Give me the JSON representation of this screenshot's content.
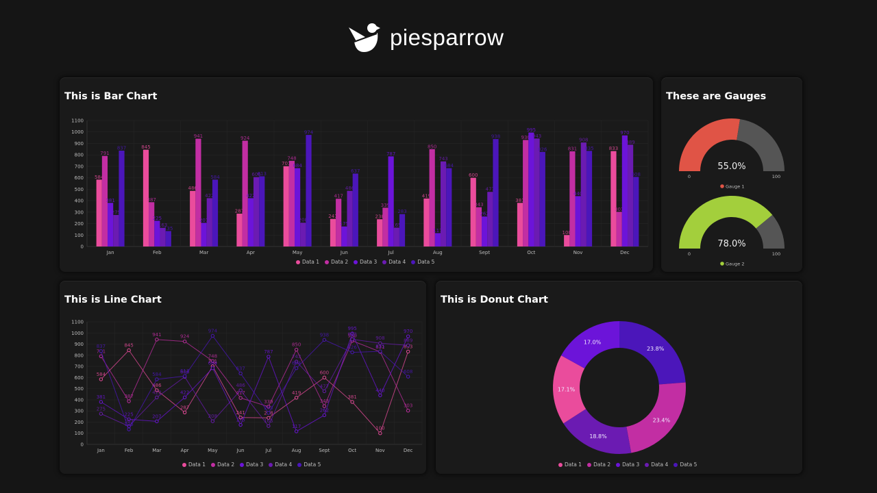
{
  "header": {
    "brand": "piesparrow",
    "logo_icon": "sparrow-icon"
  },
  "colors": {
    "series": [
      "#ea4c9c",
      "#c22ea3",
      "#6c14d9",
      "#6b1bb2",
      "#4b16ba"
    ],
    "gauge1": "#e05446",
    "gauge2": "#a3cf3c",
    "gauge_track": "#555555",
    "grid": "#262626",
    "axis_text": "#bdbdbd"
  },
  "cards": {
    "bar": {
      "title": "This is Bar Chart"
    },
    "gauges": {
      "title": "These are Gauges"
    },
    "line": {
      "title": "This is Line Chart"
    },
    "donut": {
      "title": "This is Donut Chart"
    }
  },
  "chart_data": [
    {
      "id": "bar",
      "type": "bar",
      "title": "This is Bar Chart",
      "categories": [
        "Jan",
        "Feb",
        "Mar",
        "Apr",
        "May",
        "Jun",
        "Jul",
        "Aug",
        "Sept",
        "Oct",
        "Nov",
        "Dec"
      ],
      "yticks": [
        0,
        100,
        200,
        300,
        400,
        500,
        600,
        700,
        800,
        900,
        1000,
        1100
      ],
      "ylim": [
        0,
        1100
      ],
      "grid": true,
      "legend": "bottom",
      "series": [
        {
          "name": "Data 1",
          "values": [
            584,
            845,
            486,
            287,
            701,
            241,
            238,
            419,
            600,
            381,
            100,
            833
          ]
        },
        {
          "name": "Data 2",
          "values": [
            791,
            387,
            941,
            924,
            748,
            417,
            339,
            850,
            343,
            930,
            831,
            303
          ]
        },
        {
          "name": "Data 3",
          "values": [
            381,
            225,
            207,
            422,
            684,
            175,
            787,
            117,
            262,
            995,
            440,
            970
          ]
        },
        {
          "name": "Data 4",
          "values": [
            275,
            163,
            422,
            606,
            208,
            486,
            165,
            743,
            477,
            943,
            908,
            889
          ]
        },
        {
          "name": "Data 5",
          "values": [
            837,
            135,
            584,
            613,
            974,
            637,
            283,
            684,
            938,
            826,
            835,
            608
          ]
        }
      ]
    },
    {
      "id": "gauges",
      "type": "gauge",
      "title": "These are Gauges",
      "gauges": [
        {
          "name": "Gauge 1",
          "value": 55.0,
          "min": 0,
          "max": 100,
          "label": "55.0%",
          "min_label": "0",
          "max_label": "100"
        },
        {
          "name": "Gauge 2",
          "value": 78.0,
          "min": 0,
          "max": 100,
          "label": "78.0%",
          "min_label": "0",
          "max_label": "100"
        }
      ]
    },
    {
      "id": "line",
      "type": "line",
      "title": "This is Line Chart",
      "categories": [
        "Jan",
        "Feb",
        "Mar",
        "Apr",
        "May",
        "Jun",
        "Jul",
        "Aug",
        "Sept",
        "Oct",
        "Nov",
        "Dec"
      ],
      "yticks": [
        0,
        100,
        200,
        300,
        400,
        500,
        600,
        700,
        800,
        900,
        1000,
        1100
      ],
      "ylim": [
        0,
        1100
      ],
      "grid": true,
      "legend": "bottom",
      "series": [
        {
          "name": "Data 1",
          "values": [
            584,
            845,
            486,
            287,
            701,
            241,
            238,
            419,
            600,
            381,
            100,
            833
          ]
        },
        {
          "name": "Data 2",
          "values": [
            791,
            387,
            941,
            924,
            748,
            417,
            339,
            850,
            343,
            930,
            831,
            303
          ]
        },
        {
          "name": "Data 3",
          "values": [
            381,
            225,
            207,
            422,
            684,
            175,
            787,
            117,
            262,
            995,
            440,
            970
          ]
        },
        {
          "name": "Data 4",
          "values": [
            275,
            163,
            422,
            606,
            208,
            486,
            165,
            743,
            477,
            943,
            908,
            889
          ]
        },
        {
          "name": "Data 5",
          "values": [
            837,
            135,
            584,
            613,
            974,
            637,
            283,
            684,
            938,
            826,
            835,
            608
          ]
        }
      ]
    },
    {
      "id": "donut",
      "type": "pie",
      "title": "This is Donut Chart",
      "legend": "bottom",
      "slices": [
        {
          "name": "Data 5",
          "value": 23.8,
          "label": "23.8%",
          "series_index": 4
        },
        {
          "name": "Data 2",
          "value": 23.4,
          "label": "23.4%",
          "series_index": 1
        },
        {
          "name": "Data 4",
          "value": 18.8,
          "label": "18.8%",
          "series_index": 3
        },
        {
          "name": "Data 1",
          "value": 17.1,
          "label": "17.1%",
          "series_index": 0
        },
        {
          "name": "Data 3",
          "value": 17.0,
          "label": "17.0%",
          "series_index": 2
        }
      ],
      "legend_items": [
        "Data 1",
        "Data 2",
        "Data 3",
        "Data 4",
        "Data 5"
      ]
    }
  ]
}
